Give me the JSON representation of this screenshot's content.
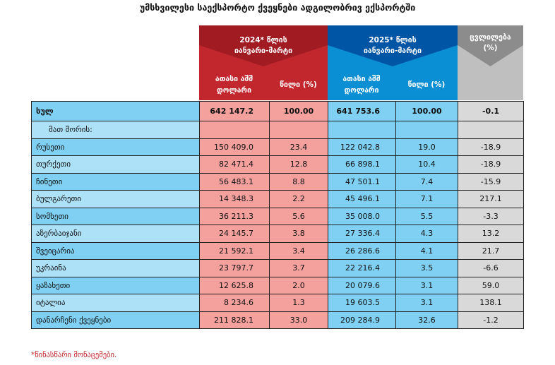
{
  "title": "უმსხვილესი საექსპორტო ქვეყნები ადგილობრივ ექსპორტში",
  "header": {
    "y2024": {
      "line1": "2024* წლის",
      "line2": "იანვარი-მარტი",
      "sub1": "ათასი აშშ დოლარი",
      "sub2": "წილი (%)"
    },
    "y2025": {
      "line1": "2025* წლის",
      "line2": "იანვარი-მარტი",
      "sub1": "ათასი აშშ დოლარი",
      "sub2": "წილი (%)"
    },
    "change": {
      "line1": "ცვლილება",
      "line2": "(%)"
    }
  },
  "total": {
    "label": "სულ",
    "v2024": "642 147.2",
    "s2024": "100.00",
    "v2025": "641 753.6",
    "s2025": "100.00",
    "change": "-0.1"
  },
  "subheading": "მათ შორის:",
  "rows": [
    {
      "label": "რუსეთი",
      "v2024": "150 409.0",
      "s2024": "23.4",
      "v2025": "122 042.8",
      "s2025": "19.0",
      "change": "-18.9"
    },
    {
      "label": "თურქეთი",
      "v2024": "82 471.4",
      "s2024": "12.8",
      "v2025": "66 898.1",
      "s2025": "10.4",
      "change": "-18.9"
    },
    {
      "label": "ჩინეთი",
      "v2024": "56 483.1",
      "s2024": "8.8",
      "v2025": "47 501.1",
      "s2025": "7.4",
      "change": "-15.9"
    },
    {
      "label": "ბულგარეთი",
      "v2024": "14 348.3",
      "s2024": "2.2",
      "v2025": "45 496.1",
      "s2025": "7.1",
      "change": "217.1"
    },
    {
      "label": "სომხეთი",
      "v2024": "36 211.3",
      "s2024": "5.6",
      "v2025": "35 008.0",
      "s2025": "5.5",
      "change": "-3.3"
    },
    {
      "label": "აზერბაიჯანი",
      "v2024": "24 145.7",
      "s2024": "3.8",
      "v2025": "27 336.4",
      "s2025": "4.3",
      "change": "13.2"
    },
    {
      "label": "შვეიცარია",
      "v2024": "21 592.1",
      "s2024": "3.4",
      "v2025": "26 286.6",
      "s2025": "4.1",
      "change": "21.7"
    },
    {
      "label": "უკრაინა",
      "v2024": "23 797.7",
      "s2024": "3.7",
      "v2025": "22 216.4",
      "s2025": "3.5",
      "change": "-6.6"
    },
    {
      "label": "ყაზახეთი",
      "v2024": "12 625.8",
      "s2024": "2.0",
      "v2025": "20 079.6",
      "s2025": "3.1",
      "change": "59.0"
    },
    {
      "label": "იტალია",
      "v2024": "8 234.6",
      "s2024": "1.3",
      "v2025": "19 603.5",
      "s2025": "3.1",
      "change": "138.1"
    },
    {
      "label": "დანარჩენი ქვეყნები",
      "v2024": "211 828.1",
      "s2024": "33.0",
      "v2025": "209 284.9",
      "s2025": "32.6",
      "change": "-1.2"
    }
  ],
  "footnote": "*წინასწარი მონაცემები."
}
